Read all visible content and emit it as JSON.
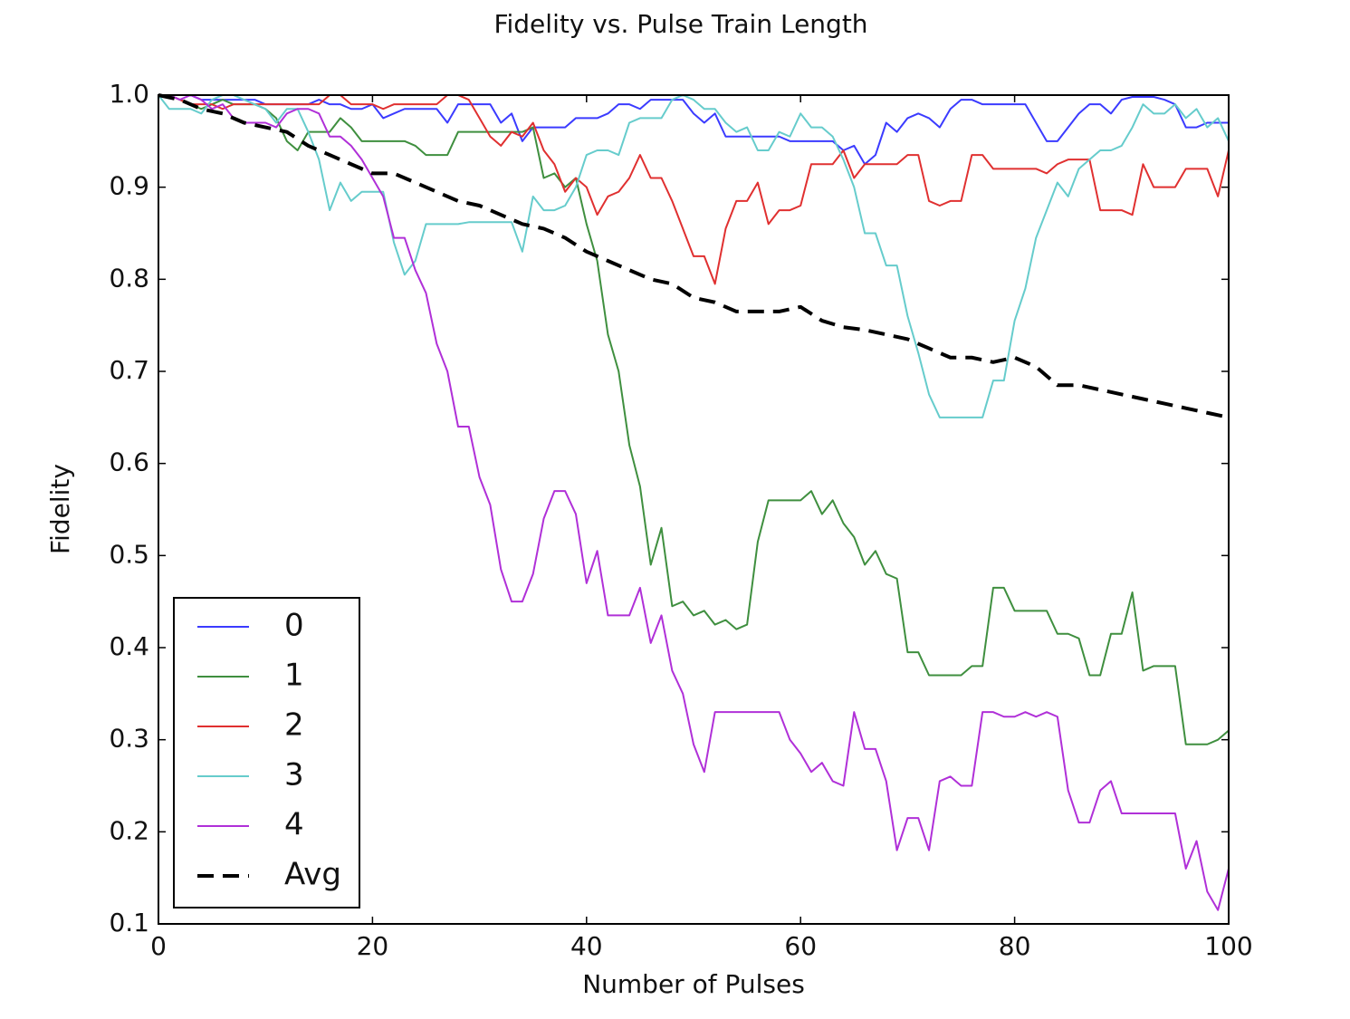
{
  "chart_data": {
    "type": "line",
    "title": "Fidelity vs. Pulse Train Length",
    "x_label": "Number of Pulses",
    "y_label": "Fidelity",
    "xlim": [
      0,
      100
    ],
    "xticks": [
      0,
      20,
      40,
      60,
      80,
      100
    ],
    "ylim": [
      0.1,
      1.0
    ],
    "yticks": [
      0.1,
      0.2,
      0.3,
      0.4,
      0.5,
      0.6,
      0.7,
      0.8,
      0.9,
      {
        "value": 1.0,
        "label": "1.0"
      }
    ],
    "grid": false,
    "legend": "lower left",
    "x": [
      0,
      1,
      2,
      3,
      4,
      5,
      6,
      7,
      8,
      9,
      10,
      11,
      12,
      13,
      14,
      15,
      16,
      17,
      18,
      19,
      20,
      21,
      22,
      23,
      24,
      25,
      26,
      27,
      28,
      29,
      30,
      31,
      32,
      33,
      34,
      35,
      36,
      37,
      38,
      39,
      40,
      41,
      42,
      43,
      44,
      45,
      46,
      47,
      48,
      49,
      50,
      51,
      52,
      53,
      54,
      55,
      56,
      57,
      58,
      59,
      60,
      61,
      62,
      63,
      64,
      65,
      66,
      67,
      68,
      69,
      70,
      71,
      72,
      73,
      74,
      75,
      76,
      77,
      78,
      79,
      80,
      81,
      82,
      83,
      84,
      85,
      86,
      87,
      88,
      89,
      90,
      91,
      92,
      93,
      94,
      95,
      96,
      97,
      98,
      99,
      100
    ],
    "series": [
      {
        "name": "0",
        "color": "#3b3bff",
        "values": [
          1.0,
          1.0,
          1.0,
          1.0,
          0.995,
          0.995,
          0.995,
          0.995,
          0.995,
          0.995,
          0.99,
          0.99,
          0.99,
          0.99,
          0.99,
          0.995,
          0.99,
          0.99,
          0.985,
          0.985,
          0.99,
          0.975,
          0.98,
          0.985,
          0.985,
          0.985,
          0.985,
          0.97,
          0.99,
          0.99,
          0.99,
          0.99,
          0.97,
          0.98,
          0.95,
          0.965,
          0.965,
          0.965,
          0.965,
          0.975,
          0.975,
          0.975,
          0.98,
          0.99,
          0.99,
          0.985,
          0.995,
          0.995,
          0.995,
          0.995,
          0.98,
          0.97,
          0.98,
          0.955,
          0.955,
          0.955,
          0.955,
          0.955,
          0.955,
          0.95,
          0.95,
          0.95,
          0.95,
          0.95,
          0.94,
          0.945,
          0.925,
          0.935,
          0.97,
          0.96,
          0.975,
          0.98,
          0.975,
          0.965,
          0.985,
          0.995,
          0.995,
          0.99,
          0.99,
          0.99,
          0.99,
          0.99,
          0.97,
          0.95,
          0.95,
          0.965,
          0.98,
          0.99,
          0.99,
          0.98,
          0.995,
          0.998,
          0.998,
          0.998,
          0.995,
          0.99,
          0.965,
          0.965,
          0.97,
          0.97,
          0.97
        ]
      },
      {
        "name": "1",
        "color": "#3f8f3f",
        "values": [
          1.0,
          1.0,
          0.995,
          0.99,
          0.985,
          0.99,
          0.995,
          0.99,
          0.99,
          0.99,
          0.985,
          0.975,
          0.95,
          0.94,
          0.96,
          0.96,
          0.96,
          0.975,
          0.965,
          0.95,
          0.95,
          0.95,
          0.95,
          0.95,
          0.945,
          0.935,
          0.935,
          0.935,
          0.96,
          0.96,
          0.96,
          0.96,
          0.96,
          0.96,
          0.96,
          0.965,
          0.91,
          0.915,
          0.9,
          0.91,
          0.86,
          0.82,
          0.74,
          0.7,
          0.62,
          0.575,
          0.49,
          0.53,
          0.445,
          0.45,
          0.435,
          0.44,
          0.425,
          0.43,
          0.42,
          0.425,
          0.515,
          0.56,
          0.56,
          0.56,
          0.56,
          0.57,
          0.545,
          0.56,
          0.535,
          0.52,
          0.49,
          0.505,
          0.48,
          0.475,
          0.395,
          0.395,
          0.37,
          0.37,
          0.37,
          0.37,
          0.38,
          0.38,
          0.465,
          0.465,
          0.44,
          0.44,
          0.44,
          0.44,
          0.415,
          0.415,
          0.41,
          0.37,
          0.37,
          0.415,
          0.415,
          0.46,
          0.375,
          0.38,
          0.38,
          0.38,
          0.295,
          0.295,
          0.295,
          0.3,
          0.31
        ]
      },
      {
        "name": "2",
        "color": "#e03030",
        "values": [
          1.0,
          1.0,
          0.995,
          0.99,
          0.99,
          0.99,
          0.985,
          0.99,
          0.99,
          0.99,
          0.99,
          0.99,
          0.99,
          0.99,
          0.99,
          0.99,
          1.0,
          1.0,
          0.99,
          0.99,
          0.99,
          0.985,
          0.99,
          0.99,
          0.99,
          0.99,
          0.99,
          1.0,
          1.0,
          0.995,
          0.975,
          0.955,
          0.945,
          0.96,
          0.955,
          0.97,
          0.94,
          0.925,
          0.895,
          0.91,
          0.9,
          0.87,
          0.89,
          0.895,
          0.91,
          0.935,
          0.91,
          0.91,
          0.885,
          0.855,
          0.825,
          0.825,
          0.795,
          0.855,
          0.885,
          0.885,
          0.905,
          0.86,
          0.875,
          0.875,
          0.88,
          0.925,
          0.925,
          0.925,
          0.94,
          0.91,
          0.925,
          0.925,
          0.925,
          0.925,
          0.935,
          0.935,
          0.885,
          0.88,
          0.885,
          0.885,
          0.935,
          0.935,
          0.92,
          0.92,
          0.92,
          0.92,
          0.92,
          0.915,
          0.925,
          0.93,
          0.93,
          0.93,
          0.875,
          0.875,
          0.875,
          0.87,
          0.925,
          0.9,
          0.9,
          0.9,
          0.92,
          0.92,
          0.92,
          0.89,
          0.94
        ]
      },
      {
        "name": "3",
        "color": "#66cccc",
        "values": [
          1.0,
          0.985,
          0.985,
          0.985,
          0.98,
          0.995,
          1.0,
          1.0,
          0.995,
          0.99,
          0.985,
          0.97,
          0.985,
          0.985,
          0.96,
          0.93,
          0.875,
          0.905,
          0.885,
          0.895,
          0.895,
          0.895,
          0.84,
          0.805,
          0.82,
          0.86,
          0.86,
          0.86,
          0.86,
          0.862,
          0.862,
          0.862,
          0.862,
          0.862,
          0.83,
          0.89,
          0.875,
          0.875,
          0.88,
          0.9,
          0.935,
          0.94,
          0.94,
          0.935,
          0.97,
          0.975,
          0.975,
          0.975,
          0.995,
          1.0,
          0.995,
          0.985,
          0.985,
          0.97,
          0.96,
          0.965,
          0.94,
          0.94,
          0.96,
          0.955,
          0.98,
          0.965,
          0.965,
          0.955,
          0.93,
          0.9,
          0.85,
          0.85,
          0.815,
          0.815,
          0.76,
          0.72,
          0.675,
          0.65,
          0.65,
          0.65,
          0.65,
          0.65,
          0.69,
          0.69,
          0.755,
          0.79,
          0.845,
          0.875,
          0.905,
          0.89,
          0.92,
          0.93,
          0.94,
          0.94,
          0.945,
          0.965,
          0.99,
          0.98,
          0.98,
          0.99,
          0.975,
          0.985,
          0.965,
          0.975,
          0.95
        ]
      },
      {
        "name": "4",
        "color": "#b030d8",
        "values": [
          1.0,
          1.0,
          0.995,
          1.0,
          0.995,
          0.985,
          0.99,
          0.975,
          0.97,
          0.97,
          0.97,
          0.965,
          0.98,
          0.985,
          0.985,
          0.98,
          0.955,
          0.955,
          0.945,
          0.93,
          0.91,
          0.89,
          0.845,
          0.845,
          0.81,
          0.785,
          0.73,
          0.7,
          0.64,
          0.64,
          0.585,
          0.555,
          0.485,
          0.45,
          0.45,
          0.48,
          0.54,
          0.57,
          0.57,
          0.545,
          0.47,
          0.505,
          0.435,
          0.435,
          0.435,
          0.465,
          0.405,
          0.435,
          0.375,
          0.35,
          0.295,
          0.265,
          0.33,
          0.33,
          0.33,
          0.33,
          0.33,
          0.33,
          0.33,
          0.3,
          0.285,
          0.265,
          0.275,
          0.255,
          0.25,
          0.33,
          0.29,
          0.29,
          0.255,
          0.18,
          0.215,
          0.215,
          0.18,
          0.255,
          0.26,
          0.25,
          0.25,
          0.33,
          0.33,
          0.325,
          0.325,
          0.33,
          0.325,
          0.33,
          0.325,
          0.245,
          0.21,
          0.21,
          0.245,
          0.255,
          0.22,
          0.22,
          0.22,
          0.22,
          0.22,
          0.22,
          0.16,
          0.19,
          0.135,
          0.115,
          0.16
        ]
      },
      {
        "name": "Avg",
        "color": "#000000",
        "dashed": true,
        "x": [
          0,
          2,
          4,
          6,
          8,
          10,
          12,
          14,
          16,
          18,
          20,
          22,
          24,
          26,
          28,
          30,
          32,
          34,
          36,
          38,
          40,
          42,
          44,
          46,
          48,
          50,
          52,
          54,
          56,
          58,
          60,
          62,
          64,
          66,
          68,
          70,
          72,
          74,
          76,
          78,
          80,
          82,
          84,
          86,
          88,
          90,
          92,
          94,
          96,
          98,
          100
        ],
        "values": [
          1.0,
          0.995,
          0.985,
          0.98,
          0.97,
          0.965,
          0.96,
          0.945,
          0.935,
          0.925,
          0.915,
          0.915,
          0.905,
          0.895,
          0.885,
          0.88,
          0.87,
          0.86,
          0.855,
          0.845,
          0.83,
          0.82,
          0.81,
          0.8,
          0.795,
          0.78,
          0.775,
          0.765,
          0.765,
          0.765,
          0.77,
          0.755,
          0.748,
          0.745,
          0.74,
          0.735,
          0.725,
          0.715,
          0.715,
          0.71,
          0.715,
          0.705,
          0.685,
          0.685,
          0.68,
          0.675,
          0.67,
          0.665,
          0.66,
          0.655,
          0.65
        ]
      }
    ]
  }
}
